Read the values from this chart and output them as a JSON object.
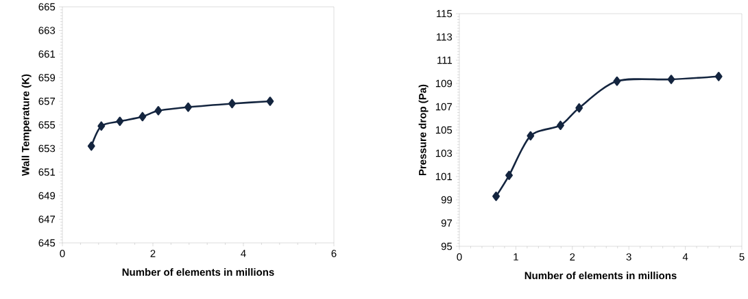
{
  "chart_data": [
    {
      "type": "line",
      "xlabel": "Number of elements in millions",
      "ylabel": "Wall Temperature (K)",
      "x": [
        0.64,
        0.86,
        1.27,
        1.77,
        2.12,
        2.78,
        3.75,
        4.59
      ],
      "values": [
        653.2,
        654.9,
        655.3,
        655.7,
        656.2,
        656.5,
        656.8,
        657.0
      ],
      "color": "#14253f",
      "marker": "diamond",
      "xlim": [
        0,
        6
      ],
      "ylim": [
        645,
        665
      ],
      "xticks": [
        0,
        2,
        4,
        6
      ],
      "yticks": [
        645,
        647,
        649,
        651,
        653,
        655,
        657,
        659,
        661,
        663,
        665
      ]
    },
    {
      "type": "line",
      "xlabel": "Number of elements in millions",
      "ylabel": "Pressure drop (Pa)",
      "x": [
        0.65,
        0.88,
        1.26,
        1.79,
        2.12,
        2.79,
        3.75,
        4.59
      ],
      "values": [
        99.3,
        101.1,
        104.5,
        105.4,
        106.9,
        109.2,
        109.35,
        109.6
      ],
      "color": "#14253f",
      "marker": "diamond",
      "xlim": [
        0,
        5
      ],
      "ylim": [
        95,
        115
      ],
      "xticks": [
        0,
        1,
        2,
        3,
        4,
        5
      ],
      "yticks": [
        95,
        97,
        99,
        101,
        103,
        105,
        107,
        109,
        111,
        113,
        115
      ]
    }
  ]
}
